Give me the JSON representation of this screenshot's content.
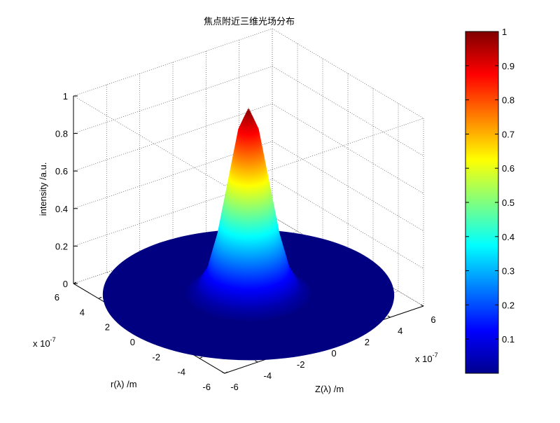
{
  "chart_data": {
    "type": "surface",
    "title": "焦点附近三维光场分布",
    "xlabel": "Z(λ) /m",
    "ylabel": "r(λ) /m",
    "zlabel": "intensity /a.u.",
    "x_exponent": "x 10",
    "y_exponent": "x 10",
    "exponent_power": "-7",
    "xlim": [
      -6,
      6
    ],
    "ylim": [
      -6,
      6
    ],
    "zlim": [
      0,
      1
    ],
    "x_ticks": [
      "-6",
      "-4",
      "-2",
      "0",
      "2",
      "4",
      "6"
    ],
    "y_ticks": [
      "-6",
      "-4",
      "-2",
      "0",
      "2",
      "4",
      "6"
    ],
    "z_ticks": [
      "0",
      "0.2",
      "0.4",
      "0.6",
      "0.8",
      "1"
    ],
    "grid": true,
    "colormap": "jet",
    "peak_value": 1,
    "radial_profile": {
      "rho": [
        0,
        0.5,
        1,
        1.5,
        2,
        2.5,
        3,
        7
      ],
      "intensity": [
        1,
        0.88,
        0.6,
        0.32,
        0.13,
        0.04,
        0.01,
        0
      ]
    },
    "colorbar": {
      "range": [
        0,
        1
      ],
      "ticks": [
        "0.1",
        "0.2",
        "0.3",
        "0.4",
        "0.5",
        "0.6",
        "0.7",
        "0.8",
        "0.9",
        "1"
      ],
      "placement": "right"
    }
  }
}
